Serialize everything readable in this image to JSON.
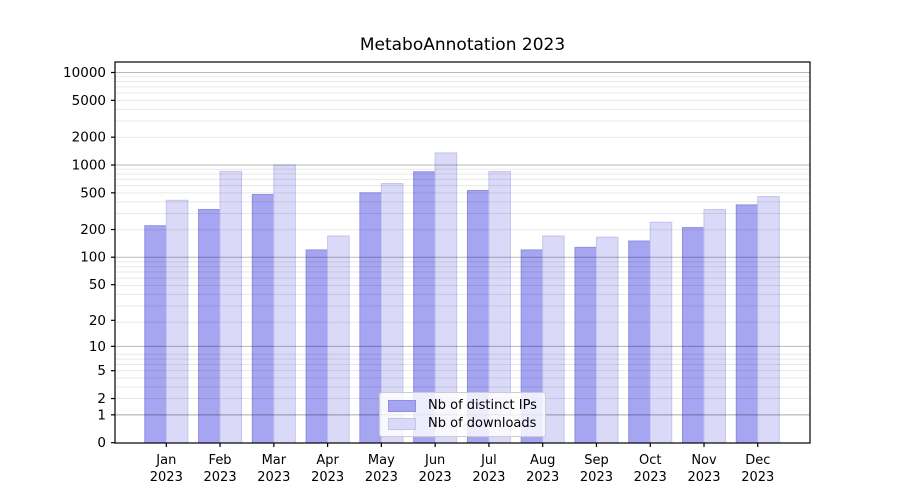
{
  "chart_data": {
    "type": "bar",
    "title": "MetaboAnnotation 2023",
    "year_label": "2023",
    "categories": [
      "Jan",
      "Feb",
      "Mar",
      "Apr",
      "May",
      "Jun",
      "Jul",
      "Aug",
      "Sep",
      "Oct",
      "Nov",
      "Dec"
    ],
    "series": [
      {
        "name": "Nb of distinct IPs",
        "color": "#a5a5f2",
        "edge_color": "#8f8fe0",
        "values": [
          220,
          330,
          480,
          120,
          500,
          845,
          530,
          120,
          128,
          150,
          210,
          370
        ]
      },
      {
        "name": "Nb of downloads",
        "color": "#dadaf8",
        "edge_color": "#c3c3ee",
        "values": [
          415,
          855,
          1000,
          170,
          630,
          1350,
          850,
          170,
          165,
          240,
          330,
          455
        ]
      }
    ],
    "yscale": "log1p",
    "ylim": [
      0,
      13000
    ],
    "ytick_values": [
      10000,
      5000,
      2000,
      1000,
      500,
      200,
      100,
      50,
      20,
      10,
      5,
      2,
      1,
      0
    ],
    "ytick_labels": [
      "10000",
      "5000",
      "2000",
      "1000",
      "500",
      "200",
      "100",
      "50",
      "20",
      "10",
      "5",
      "2",
      "1",
      "0"
    ],
    "major_grid_values": [
      1,
      10,
      100,
      1000,
      10000
    ],
    "minor_grid_mantissas": [
      2,
      3,
      4,
      5,
      6,
      7,
      8,
      9
    ],
    "grid": true,
    "legend_position": "lower center",
    "colors": {
      "major_grid": "rgba(0,0,0,0.28)",
      "minor_grid": "rgba(0,0,0,0.09)",
      "spine": "#000000",
      "text": "#000000"
    }
  }
}
